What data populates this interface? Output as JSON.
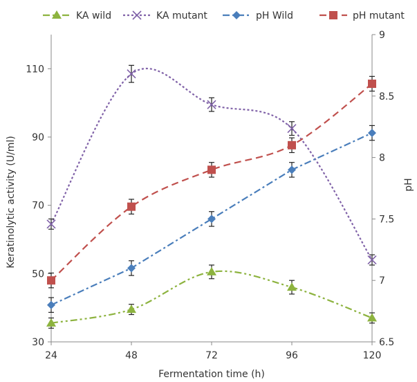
{
  "chart_data": {
    "type": "line",
    "x": [
      24,
      48,
      72,
      96,
      120
    ],
    "xlabel": "Fermentation time (h)",
    "ylabel": "Keratinolytic activity (U/ml)",
    "y2label": "pH",
    "xticks": [
      "24",
      "48",
      "72",
      "96",
      "120"
    ],
    "yticks": [
      "30",
      "50",
      "70",
      "90",
      "110"
    ],
    "y2ticks": [
      "6.5",
      "7",
      "7.5",
      "8",
      "8.5",
      "9"
    ],
    "ylim": [
      30,
      120
    ],
    "y2lim": [
      6.5,
      9
    ],
    "grid": false,
    "legend_position": "top",
    "series": [
      {
        "name": "KA wild",
        "axis": "left",
        "color": "#8DB33F",
        "marker": "triangle",
        "dash": "dashdotdot",
        "smooth": true,
        "values": [
          35.5,
          39.5,
          50.5,
          46,
          37
        ],
        "errors": [
          1.5,
          1.5,
          2,
          2,
          1.5
        ]
      },
      {
        "name": "KA mutant",
        "axis": "left",
        "color": "#8062A8",
        "marker": "x",
        "dash": "dot",
        "smooth": true,
        "values": [
          64.5,
          108.5,
          99.5,
          92.5,
          54
        ],
        "errors": [
          1.5,
          2.5,
          2,
          2,
          1.5
        ]
      },
      {
        "name": "pH Wild",
        "axis": "right",
        "color": "#4A7EBB",
        "marker": "diamond",
        "dash": "dashdot",
        "smooth": false,
        "values": [
          6.8,
          7.1,
          7.5,
          7.9,
          8.2
        ],
        "errors": [
          0.06,
          0.06,
          0.06,
          0.06,
          0.06
        ]
      },
      {
        "name": "pH mutant",
        "axis": "right",
        "color": "#C0504D",
        "marker": "square",
        "dash": "dash",
        "smooth": true,
        "values": [
          7.0,
          7.6,
          7.9,
          8.1,
          8.6
        ],
        "errors": [
          0.06,
          0.06,
          0.06,
          0.06,
          0.06
        ]
      }
    ]
  }
}
